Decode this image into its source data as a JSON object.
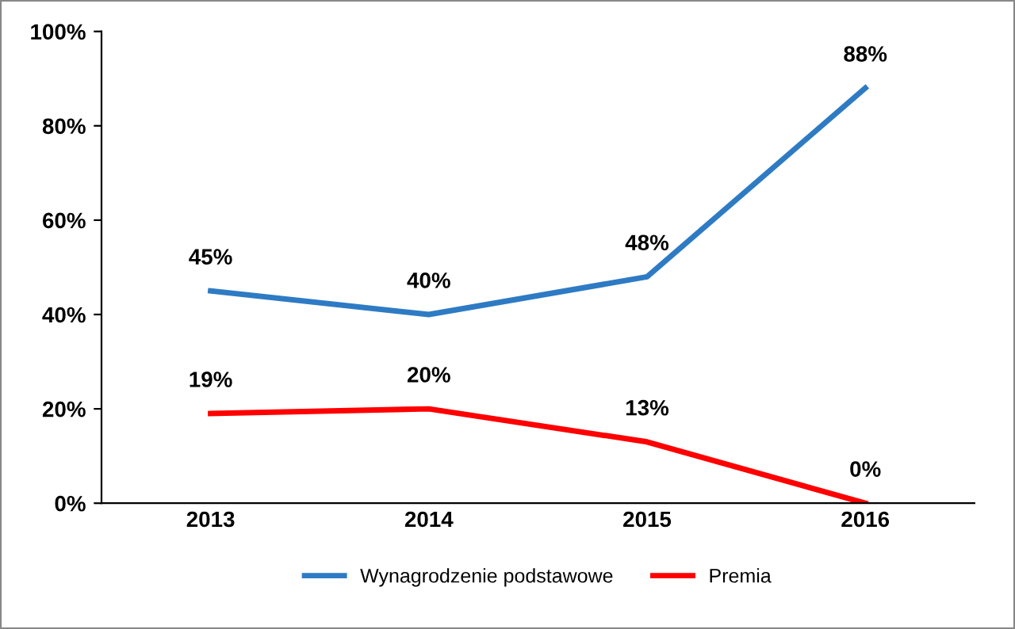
{
  "chart_data": {
    "type": "line",
    "categories": [
      "2013",
      "2014",
      "2015",
      "2016"
    ],
    "series": [
      {
        "name": "Wynagrodzenie podstawowe",
        "color": "#2e7bc4",
        "values": [
          45,
          40,
          48,
          88
        ],
        "value_labels": [
          "45%",
          "40%",
          "48%",
          "88%"
        ]
      },
      {
        "name": "Premia",
        "color": "#ff0000",
        "values": [
          19,
          20,
          13,
          0
        ],
        "value_labels": [
          "19%",
          "20%",
          "13%",
          "0%"
        ]
      }
    ],
    "ylim": [
      0,
      100
    ],
    "yticks": [
      {
        "value": 0,
        "label": "0%"
      },
      {
        "value": 20,
        "label": "20%"
      },
      {
        "value": 40,
        "label": "40%"
      },
      {
        "value": 60,
        "label": "60%"
      },
      {
        "value": 80,
        "label": "80%"
      },
      {
        "value": 100,
        "label": "100%"
      }
    ],
    "grid": false,
    "legend": "bottom",
    "marker": "none",
    "line_style": "solid"
  }
}
